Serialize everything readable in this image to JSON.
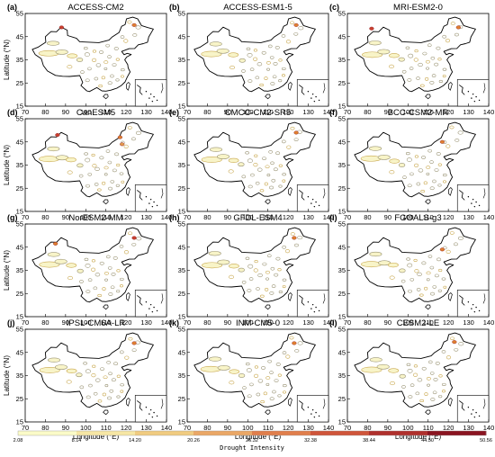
{
  "chart_data": [
    {
      "panel_label": "(a)",
      "title": "ACCESS-CM2",
      "show_ylabel": true,
      "show_xlabel": false
    },
    {
      "panel_label": "(b)",
      "title": "ACCESS-ESM1-5",
      "show_ylabel": false,
      "show_xlabel": false
    },
    {
      "panel_label": "(c)",
      "title": "MRI-ESM2-0",
      "show_ylabel": false,
      "show_xlabel": false
    },
    {
      "panel_label": "(d)",
      "title": "CanESM5",
      "show_ylabel": true,
      "show_xlabel": false
    },
    {
      "panel_label": "(e)",
      "title": "CMCC-CM2-SR5",
      "show_ylabel": false,
      "show_xlabel": false
    },
    {
      "panel_label": "(f)",
      "title": "BCC-CSM2-MR",
      "show_ylabel": false,
      "show_xlabel": false
    },
    {
      "panel_label": "(g)",
      "title": "NorESM2-MM",
      "show_ylabel": true,
      "show_xlabel": false
    },
    {
      "panel_label": "(h)",
      "title": "GFDL-ESM4",
      "show_ylabel": false,
      "show_xlabel": false
    },
    {
      "panel_label": "(i)",
      "title": "FGOALS-g3",
      "show_ylabel": false,
      "show_xlabel": false
    },
    {
      "panel_label": "(j)",
      "title": "IPSL-CM6A-LR",
      "show_ylabel": true,
      "show_xlabel": true
    },
    {
      "panel_label": "(k)",
      "title": "INM-CM5-0",
      "show_ylabel": false,
      "show_xlabel": true
    },
    {
      "panel_label": "(l)",
      "title": "CESM2-LE",
      "show_ylabel": false,
      "show_xlabel": true
    }
  ],
  "axes": {
    "type": "map",
    "xlabel": "Longitude (°E)",
    "ylabel": "Latitude (°N)",
    "xlim": [
      70,
      140
    ],
    "ylim": [
      15,
      55
    ],
    "xticks": [
      "70",
      "80",
      "90",
      "100",
      "110",
      "120",
      "130",
      "140"
    ],
    "yticks": [
      "15",
      "25",
      "35",
      "45",
      "55"
    ]
  },
  "colorbar": {
    "title": "Drought Intensity",
    "ticks": [
      "2.08",
      "8.14",
      "14.20",
      "20.26",
      "26.32",
      "32.38",
      "38.44",
      "44.50",
      "50.56"
    ],
    "colors": [
      "#fbfbc8",
      "#f6e6a4",
      "#f0cb80",
      "#eaa766",
      "#e07e4c",
      "#cf553a",
      "#b0302c",
      "#8a1420"
    ]
  }
}
